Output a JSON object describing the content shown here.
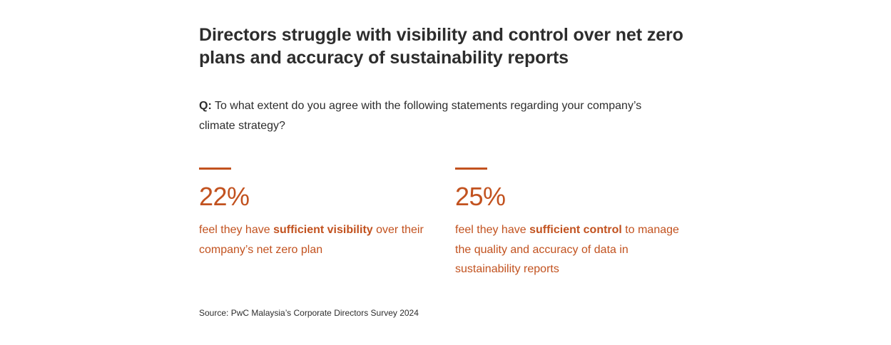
{
  "header": {
    "title": "Directors struggle with visibility and control over net zero plans and accuracy of sustainability reports"
  },
  "question": {
    "prefix": "Q:",
    "text": " To what extent do you agree with the following statements regarding your company’s climate strategy?"
  },
  "stats": [
    {
      "value": "22%",
      "desc_before": "feel they have ",
      "desc_bold": "sufficient visibility",
      "desc_after": " over their company’s net zero plan"
    },
    {
      "value": "25%",
      "desc_before": "feel they have ",
      "desc_bold": "sufficient control",
      "desc_after": " to manage the quality and accuracy of data in sustainability reports"
    }
  ],
  "source": {
    "text": "Source: PwC Malaysia’s Corporate Directors Survey 2024"
  },
  "colors": {
    "accent": "#c2521f",
    "text": "#2d2d2d",
    "background": "#ffffff"
  }
}
